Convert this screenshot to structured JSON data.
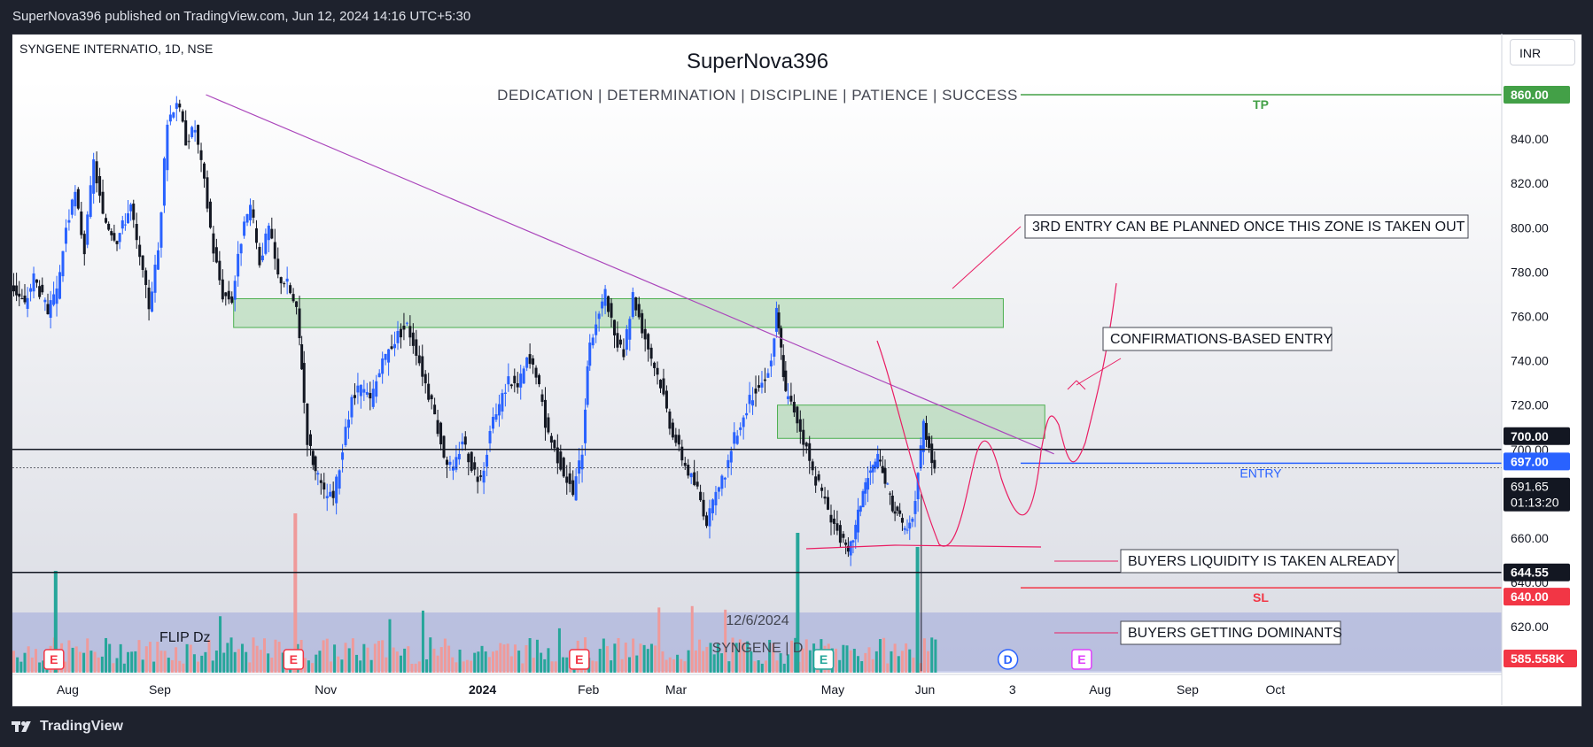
{
  "header": {
    "published": "SuperNova396 published on TradingView.com, Jun 12, 2024 14:16 UTC+5:30"
  },
  "footer": {
    "brand": "TradingView"
  },
  "currency": "INR",
  "symbol_line": "SYNGENE INTERNATIO, 1D, NSE",
  "colors": {
    "up": "#2962ff",
    "down": "#131722",
    "zone": "#a5d6a7",
    "trendline": "#ab47bc",
    "tp": "#43a047",
    "sl": "#f23645",
    "entry": "#2962ff",
    "vol_up": "#26a69a",
    "vol_down": "#ef9a9a",
    "vol_band": "#9fa8da",
    "sketch": "#e91e63"
  },
  "chart_data": {
    "type": "candlestick",
    "title": "SuperNova396",
    "subtitle": "DEDICATION | DETERMINATION | DISCIPLINE | PATIENCE | SUCCESS",
    "ylim": [
      600,
      870
    ],
    "y_ticks": [
      620,
      640,
      660,
      680,
      700,
      720,
      740,
      760,
      780,
      800,
      820,
      840
    ],
    "x_ticks": [
      "Aug",
      "Sep",
      "Nov",
      "2024",
      "Feb",
      "Mar",
      "May",
      "Jun",
      "3",
      "Aug",
      "Sep",
      "Oct"
    ],
    "x_tick_days": [
      0,
      100,
      280,
      450,
      565,
      660,
      830,
      930,
      1025,
      1120,
      1215,
      1310
    ],
    "x_day_range": [
      -60,
      1450
    ],
    "candles_daily_price_path": [
      {
        "d": -60,
        "v": 775
      },
      {
        "d": -45,
        "v": 765
      },
      {
        "d": -35,
        "v": 778
      },
      {
        "d": -20,
        "v": 762
      },
      {
        "d": -10,
        "v": 770
      },
      {
        "d": 0,
        "v": 800
      },
      {
        "d": 10,
        "v": 815
      },
      {
        "d": 20,
        "v": 790
      },
      {
        "d": 30,
        "v": 830
      },
      {
        "d": 40,
        "v": 805
      },
      {
        "d": 55,
        "v": 795
      },
      {
        "d": 70,
        "v": 810
      },
      {
        "d": 80,
        "v": 785
      },
      {
        "d": 90,
        "v": 765
      },
      {
        "d": 100,
        "v": 790
      },
      {
        "d": 110,
        "v": 848
      },
      {
        "d": 120,
        "v": 858
      },
      {
        "d": 130,
        "v": 840
      },
      {
        "d": 140,
        "v": 845
      },
      {
        "d": 150,
        "v": 820
      },
      {
        "d": 160,
        "v": 790
      },
      {
        "d": 170,
        "v": 770
      },
      {
        "d": 180,
        "v": 768
      },
      {
        "d": 190,
        "v": 795
      },
      {
        "d": 200,
        "v": 810
      },
      {
        "d": 210,
        "v": 785
      },
      {
        "d": 220,
        "v": 800
      },
      {
        "d": 230,
        "v": 778
      },
      {
        "d": 240,
        "v": 775
      },
      {
        "d": 250,
        "v": 762
      },
      {
        "d": 255,
        "v": 738
      },
      {
        "d": 262,
        "v": 705
      },
      {
        "d": 270,
        "v": 690
      },
      {
        "d": 280,
        "v": 680
      },
      {
        "d": 290,
        "v": 678
      },
      {
        "d": 300,
        "v": 700
      },
      {
        "d": 310,
        "v": 722
      },
      {
        "d": 320,
        "v": 728
      },
      {
        "d": 330,
        "v": 722
      },
      {
        "d": 340,
        "v": 735
      },
      {
        "d": 350,
        "v": 745
      },
      {
        "d": 360,
        "v": 752
      },
      {
        "d": 370,
        "v": 756
      },
      {
        "d": 380,
        "v": 745
      },
      {
        "d": 390,
        "v": 730
      },
      {
        "d": 400,
        "v": 715
      },
      {
        "d": 410,
        "v": 698
      },
      {
        "d": 420,
        "v": 690
      },
      {
        "d": 430,
        "v": 705
      },
      {
        "d": 440,
        "v": 693
      },
      {
        "d": 450,
        "v": 685
      },
      {
        "d": 460,
        "v": 708
      },
      {
        "d": 470,
        "v": 720
      },
      {
        "d": 480,
        "v": 732
      },
      {
        "d": 490,
        "v": 728
      },
      {
        "d": 500,
        "v": 740
      },
      {
        "d": 510,
        "v": 735
      },
      {
        "d": 520,
        "v": 712
      },
      {
        "d": 530,
        "v": 700
      },
      {
        "d": 540,
        "v": 690
      },
      {
        "d": 550,
        "v": 680
      },
      {
        "d": 560,
        "v": 700
      },
      {
        "d": 565,
        "v": 740
      },
      {
        "d": 575,
        "v": 758
      },
      {
        "d": 585,
        "v": 770
      },
      {
        "d": 595,
        "v": 750
      },
      {
        "d": 605,
        "v": 742
      },
      {
        "d": 615,
        "v": 770
      },
      {
        "d": 625,
        "v": 755
      },
      {
        "d": 635,
        "v": 742
      },
      {
        "d": 645,
        "v": 730
      },
      {
        "d": 655,
        "v": 712
      },
      {
        "d": 665,
        "v": 700
      },
      {
        "d": 675,
        "v": 690
      },
      {
        "d": 685,
        "v": 682
      },
      {
        "d": 695,
        "v": 668
      },
      {
        "d": 705,
        "v": 678
      },
      {
        "d": 715,
        "v": 690
      },
      {
        "d": 725,
        "v": 705
      },
      {
        "d": 735,
        "v": 715
      },
      {
        "d": 745,
        "v": 725
      },
      {
        "d": 755,
        "v": 730
      },
      {
        "d": 765,
        "v": 740
      },
      {
        "d": 770,
        "v": 762
      },
      {
        "d": 775,
        "v": 745
      },
      {
        "d": 780,
        "v": 725
      },
      {
        "d": 790,
        "v": 718
      },
      {
        "d": 800,
        "v": 705
      },
      {
        "d": 810,
        "v": 690
      },
      {
        "d": 820,
        "v": 680
      },
      {
        "d": 830,
        "v": 670
      },
      {
        "d": 840,
        "v": 660
      },
      {
        "d": 848,
        "v": 652
      },
      {
        "d": 856,
        "v": 665
      },
      {
        "d": 864,
        "v": 682
      },
      {
        "d": 872,
        "v": 690
      },
      {
        "d": 880,
        "v": 695
      },
      {
        "d": 888,
        "v": 686
      },
      {
        "d": 896,
        "v": 675
      },
      {
        "d": 904,
        "v": 668
      },
      {
        "d": 912,
        "v": 662
      },
      {
        "d": 918,
        "v": 668
      },
      {
        "d": 924,
        "v": 690
      },
      {
        "d": 930,
        "v": 712
      },
      {
        "d": 936,
        "v": 702
      },
      {
        "d": 942,
        "v": 691.65
      }
    ],
    "levels": [
      {
        "label": "TP",
        "price": 860,
        "tag": "860.00"
      },
      {
        "label": "",
        "price": 700,
        "tag": "700.00"
      },
      {
        "label": "",
        "price": 697,
        "tag": "697.00"
      },
      {
        "label": "ENTRY",
        "price": 697
      },
      {
        "label": "",
        "price": 691.65,
        "tag": "691.65"
      },
      {
        "label": "",
        "price": 644.55,
        "tag": "644.55"
      },
      {
        "label": "SL",
        "price": 640,
        "tag": "640.00"
      }
    ],
    "countdown": "01:13:20",
    "volume_tag": "585.558K",
    "zones": [
      {
        "from_day": 180,
        "to_day": 1015,
        "low": 755,
        "high": 768
      },
      {
        "from_day": 770,
        "to_day": 1060,
        "low": 705,
        "high": 720
      }
    ],
    "trendline": {
      "from": [
        150,
        860
      ],
      "to": [
        1070,
        698
      ]
    },
    "annotations": [
      "3RD ENTRY CAN BE PLANNED ONCE THIS ZONE IS TAKEN OUT",
      "CONFIRMATIONS-BASED ENTRY",
      "BUYERS LIQUIDITY IS TAKEN ALREADY",
      "BUYERS GETTING DOMINANTS"
    ],
    "volume_labels": [
      "FLIP Dz",
      "12/6/2024",
      "SYNGENE | D"
    ],
    "event_markers": [
      {
        "day": -15,
        "letter": "E",
        "kind": "earnings"
      },
      {
        "day": 245,
        "letter": "E",
        "kind": "earnings"
      },
      {
        "day": 555,
        "letter": "E",
        "kind": "earnings"
      },
      {
        "day": 820,
        "letter": "E",
        "kind": "earnings-green"
      },
      {
        "day": 1020,
        "letter": "D",
        "kind": "dividend"
      },
      {
        "day": 1100,
        "letter": "E",
        "kind": "earnings-purple"
      }
    ],
    "legend": "none",
    "grid": false
  }
}
